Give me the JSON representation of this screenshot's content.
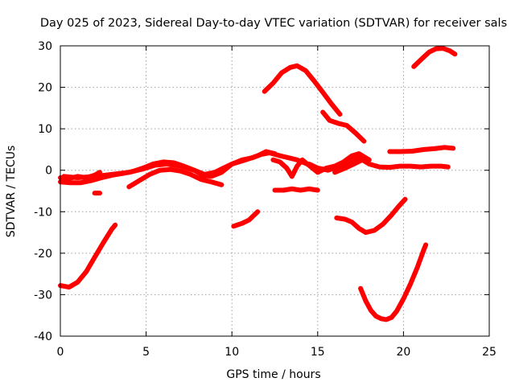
{
  "chart_data": {
    "type": "line",
    "title": "Day 025 of 2023, Sidereal Day-to-day VTEC variation (SDTVAR) for receiver sals",
    "xlabel": "GPS time / hours",
    "ylabel": "SDTVAR / TECUs",
    "xlim": [
      0,
      25
    ],
    "ylim": [
      -40,
      30
    ],
    "xticks": [
      0,
      5,
      10,
      15,
      20,
      25
    ],
    "yticks": [
      -40,
      -30,
      -20,
      -10,
      0,
      10,
      20,
      30
    ],
    "xtick_labels": [
      "0",
      "5",
      "10",
      "15",
      "20",
      "25"
    ],
    "ytick_labels": [
      "-40",
      "-30",
      "-20",
      "-10",
      "0",
      "10",
      "20",
      "30"
    ],
    "grid": true,
    "color": "#ff0000",
    "series": [
      {
        "name": "s1",
        "x": [
          0.0,
          0.5,
          1.0,
          1.5,
          2.0,
          2.3
        ],
        "y": [
          -1.8,
          -2.0,
          -1.5,
          -1.8,
          -1.2,
          -0.5
        ]
      },
      {
        "name": "s2",
        "x": [
          0.0,
          0.6,
          1.2,
          1.8,
          2.4,
          3.0,
          3.6,
          4.2,
          4.8,
          5.4,
          6.0,
          6.6,
          7.2,
          7.8,
          8.3,
          8.8,
          9.4,
          10.0,
          10.6,
          11.2,
          11.7,
          12.2,
          12.8,
          13.3,
          13.8,
          14.4,
          15.0,
          15.4
        ],
        "y": [
          -2.8,
          -3.0,
          -3.0,
          -2.5,
          -1.8,
          -1.2,
          -0.8,
          -0.3,
          0.5,
          1.5,
          2.0,
          1.8,
          1.0,
          0.0,
          -1.2,
          -1.5,
          -0.5,
          1.5,
          2.5,
          3.0,
          3.8,
          4.2,
          3.5,
          3.0,
          2.5,
          1.5,
          0.5,
          0.2
        ]
      },
      {
        "name": "s3",
        "x": [
          0.2,
          1.0,
          2.0,
          3.0,
          4.0,
          4.8,
          5.5,
          6.2,
          7.0,
          7.8,
          8.4,
          9.0,
          9.5,
          10.0,
          10.8,
          11.5,
          12.0,
          12.5
        ],
        "y": [
          -1.5,
          -1.8,
          -1.5,
          -1.0,
          -0.5,
          0.3,
          1.2,
          1.5,
          1.0,
          0.0,
          -1.0,
          -0.5,
          0.5,
          1.5,
          2.5,
          3.5,
          4.5,
          4.0
        ]
      },
      {
        "name": "s4",
        "x": [
          4.0,
          4.6,
          5.2,
          5.8,
          6.4,
          7.0,
          7.6,
          8.2,
          8.8,
          9.4
        ],
        "y": [
          -4.0,
          -2.5,
          -1.0,
          0.0,
          0.2,
          -0.2,
          -1.0,
          -2.2,
          -2.8,
          -3.5
        ]
      },
      {
        "name": "s5",
        "x": [
          2.0,
          2.3
        ],
        "y": [
          -5.5,
          -5.5
        ]
      },
      {
        "name": "s6",
        "x": [
          0.0,
          0.5,
          1.0,
          1.5,
          2.0,
          2.5,
          3.0,
          3.2
        ],
        "y": [
          -27.8,
          -28.2,
          -27.0,
          -24.5,
          -21.0,
          -17.5,
          -14.2,
          -13.2
        ]
      },
      {
        "name": "s7",
        "x": [
          10.1,
          10.6,
          11.0,
          11.3,
          11.5
        ],
        "y": [
          -13.5,
          -12.8,
          -12.0,
          -10.8,
          -10.0
        ]
      },
      {
        "name": "s8",
        "x": [
          11.9,
          12.4,
          12.9,
          13.4,
          13.8,
          14.3,
          14.8,
          15.3,
          15.8,
          16.3
        ],
        "y": [
          19.0,
          21.0,
          23.5,
          24.8,
          25.2,
          24.0,
          21.5,
          18.8,
          16.0,
          13.5
        ]
      },
      {
        "name": "s9",
        "x": [
          15.3,
          15.7,
          16.2,
          16.7,
          17.2,
          17.7
        ],
        "y": [
          14.0,
          12.0,
          11.3,
          10.8,
          9.0,
          7.0
        ]
      },
      {
        "name": "s10",
        "x": [
          12.5,
          13.0,
          13.5,
          14.0,
          14.5,
          15.0
        ],
        "y": [
          -4.8,
          -4.8,
          -4.5,
          -4.8,
          -4.5,
          -4.8
        ]
      },
      {
        "name": "s11",
        "x": [
          12.4,
          12.8,
          13.2,
          13.5,
          13.8,
          14.1,
          14.4,
          14.7,
          15.0,
          15.5,
          16.0,
          16.5,
          17.0,
          17.4,
          18.0
        ],
        "y": [
          2.5,
          2.0,
          0.5,
          -1.5,
          1.0,
          2.5,
          1.5,
          0.5,
          -0.5,
          0.5,
          1.0,
          2.0,
          3.5,
          4.0,
          2.5
        ]
      },
      {
        "name": "s12",
        "x": [
          14.5,
          15.0,
          15.6,
          16.2,
          16.8,
          17.4,
          18.0,
          18.6,
          19.2,
          19.8,
          20.4,
          21.0,
          21.6,
          22.2,
          22.6
        ],
        "y": [
          1.5,
          0.5,
          0.0,
          0.8,
          2.0,
          3.0,
          1.5,
          0.8,
          0.7,
          1.0,
          1.0,
          0.8,
          1.0,
          1.0,
          0.8
        ]
      },
      {
        "name": "s13",
        "x": [
          16.0,
          16.6,
          17.1,
          17.6,
          17.8
        ],
        "y": [
          -0.5,
          0.5,
          1.5,
          2.5,
          3.0
        ]
      },
      {
        "name": "s14",
        "x": [
          19.2,
          19.8,
          20.5,
          21.2,
          21.8,
          22.4,
          22.9
        ],
        "y": [
          4.5,
          4.5,
          4.6,
          5.0,
          5.2,
          5.5,
          5.3
        ]
      },
      {
        "name": "s15",
        "x": [
          20.6,
          21.1,
          21.5,
          21.9,
          22.3,
          22.7,
          23.0
        ],
        "y": [
          25.0,
          27.0,
          28.5,
          29.3,
          29.4,
          28.8,
          28.0
        ]
      },
      {
        "name": "s16",
        "x": [
          16.1,
          16.6,
          17.0,
          17.4,
          17.8,
          18.3,
          18.8,
          19.3,
          19.7,
          20.1
        ],
        "y": [
          -11.5,
          -11.8,
          -12.5,
          -14.0,
          -15.0,
          -14.5,
          -13.0,
          -10.8,
          -8.8,
          -7.0
        ]
      },
      {
        "name": "s17",
        "x": [
          17.5,
          17.8,
          18.1,
          18.4,
          18.7,
          19.0,
          19.3,
          19.6,
          20.0,
          20.4,
          20.8,
          21.2,
          21.3
        ],
        "y": [
          -28.5,
          -31.5,
          -33.8,
          -35.2,
          -35.8,
          -36.0,
          -35.5,
          -34.0,
          -31.0,
          -27.5,
          -23.5,
          -19.0,
          -18.0
        ]
      }
    ]
  }
}
